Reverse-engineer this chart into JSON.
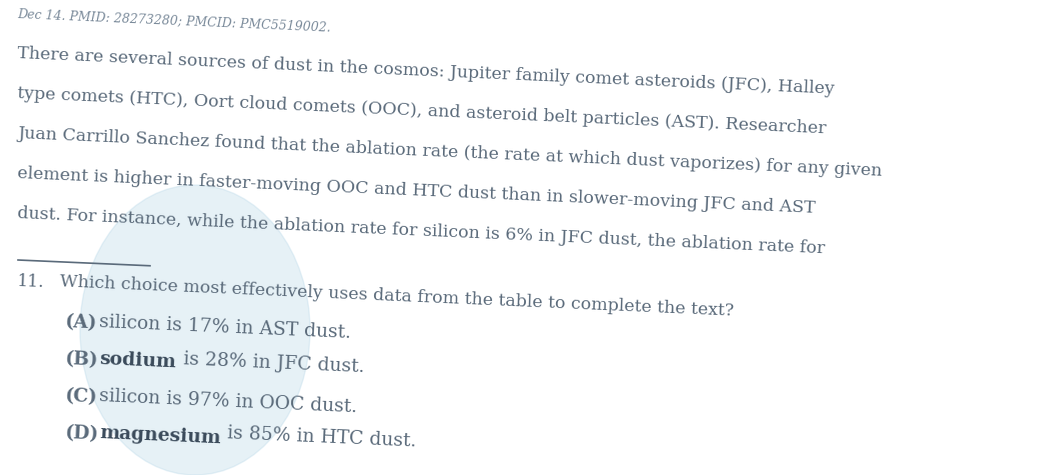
{
  "header_text": "Dec 14. PMID: 28273280; PMCID: PMC5519002.",
  "lines": [
    "There are several sources of dust in the cosmos: Jupiter family comet asteroids (JFC), Halley",
    "type comets (HTC), Oort cloud comets (OOC), and asteroid belt particles (AST). Researcher",
    "Juan Carrillo Sanchez found that the ablation rate (the rate at which dust vaporizes) for any given",
    "element is higher in faster-moving OOC and HTC dust than in slower-moving JFC and AST",
    "dust. For instance, while the ablation rate for silicon is 6% in JFC dust, the ablation rate for"
  ],
  "question_number": "11.",
  "question_text": " Which choice most effectively uses data from the table to complete the text?",
  "choices": [
    {
      "label": "(A)",
      "bold": "",
      "rest": "silicon is 17% in AST dust."
    },
    {
      "label": "(B)",
      "bold": "sodium",
      "rest": " is 28% in JFC dust."
    },
    {
      "label": "(C)",
      "bold": "",
      "rest": "silicon is 97% in OOC dust."
    },
    {
      "label": "(D)",
      "bold": "magnesium",
      "rest": " is 85% in HTC dust."
    }
  ],
  "bg_color": "#ffffff",
  "text_color": "#5a6a7a",
  "bold_color": "#3a4a5a",
  "header_color": "#7a8a9a",
  "font_size_header": 9.0,
  "font_size_para": 12.5,
  "font_size_question": 12.5,
  "font_size_choices": 13.5,
  "watermark_color": "#b8d8e8",
  "watermark_alpha": 0.35,
  "rotation_deg": -2.5
}
